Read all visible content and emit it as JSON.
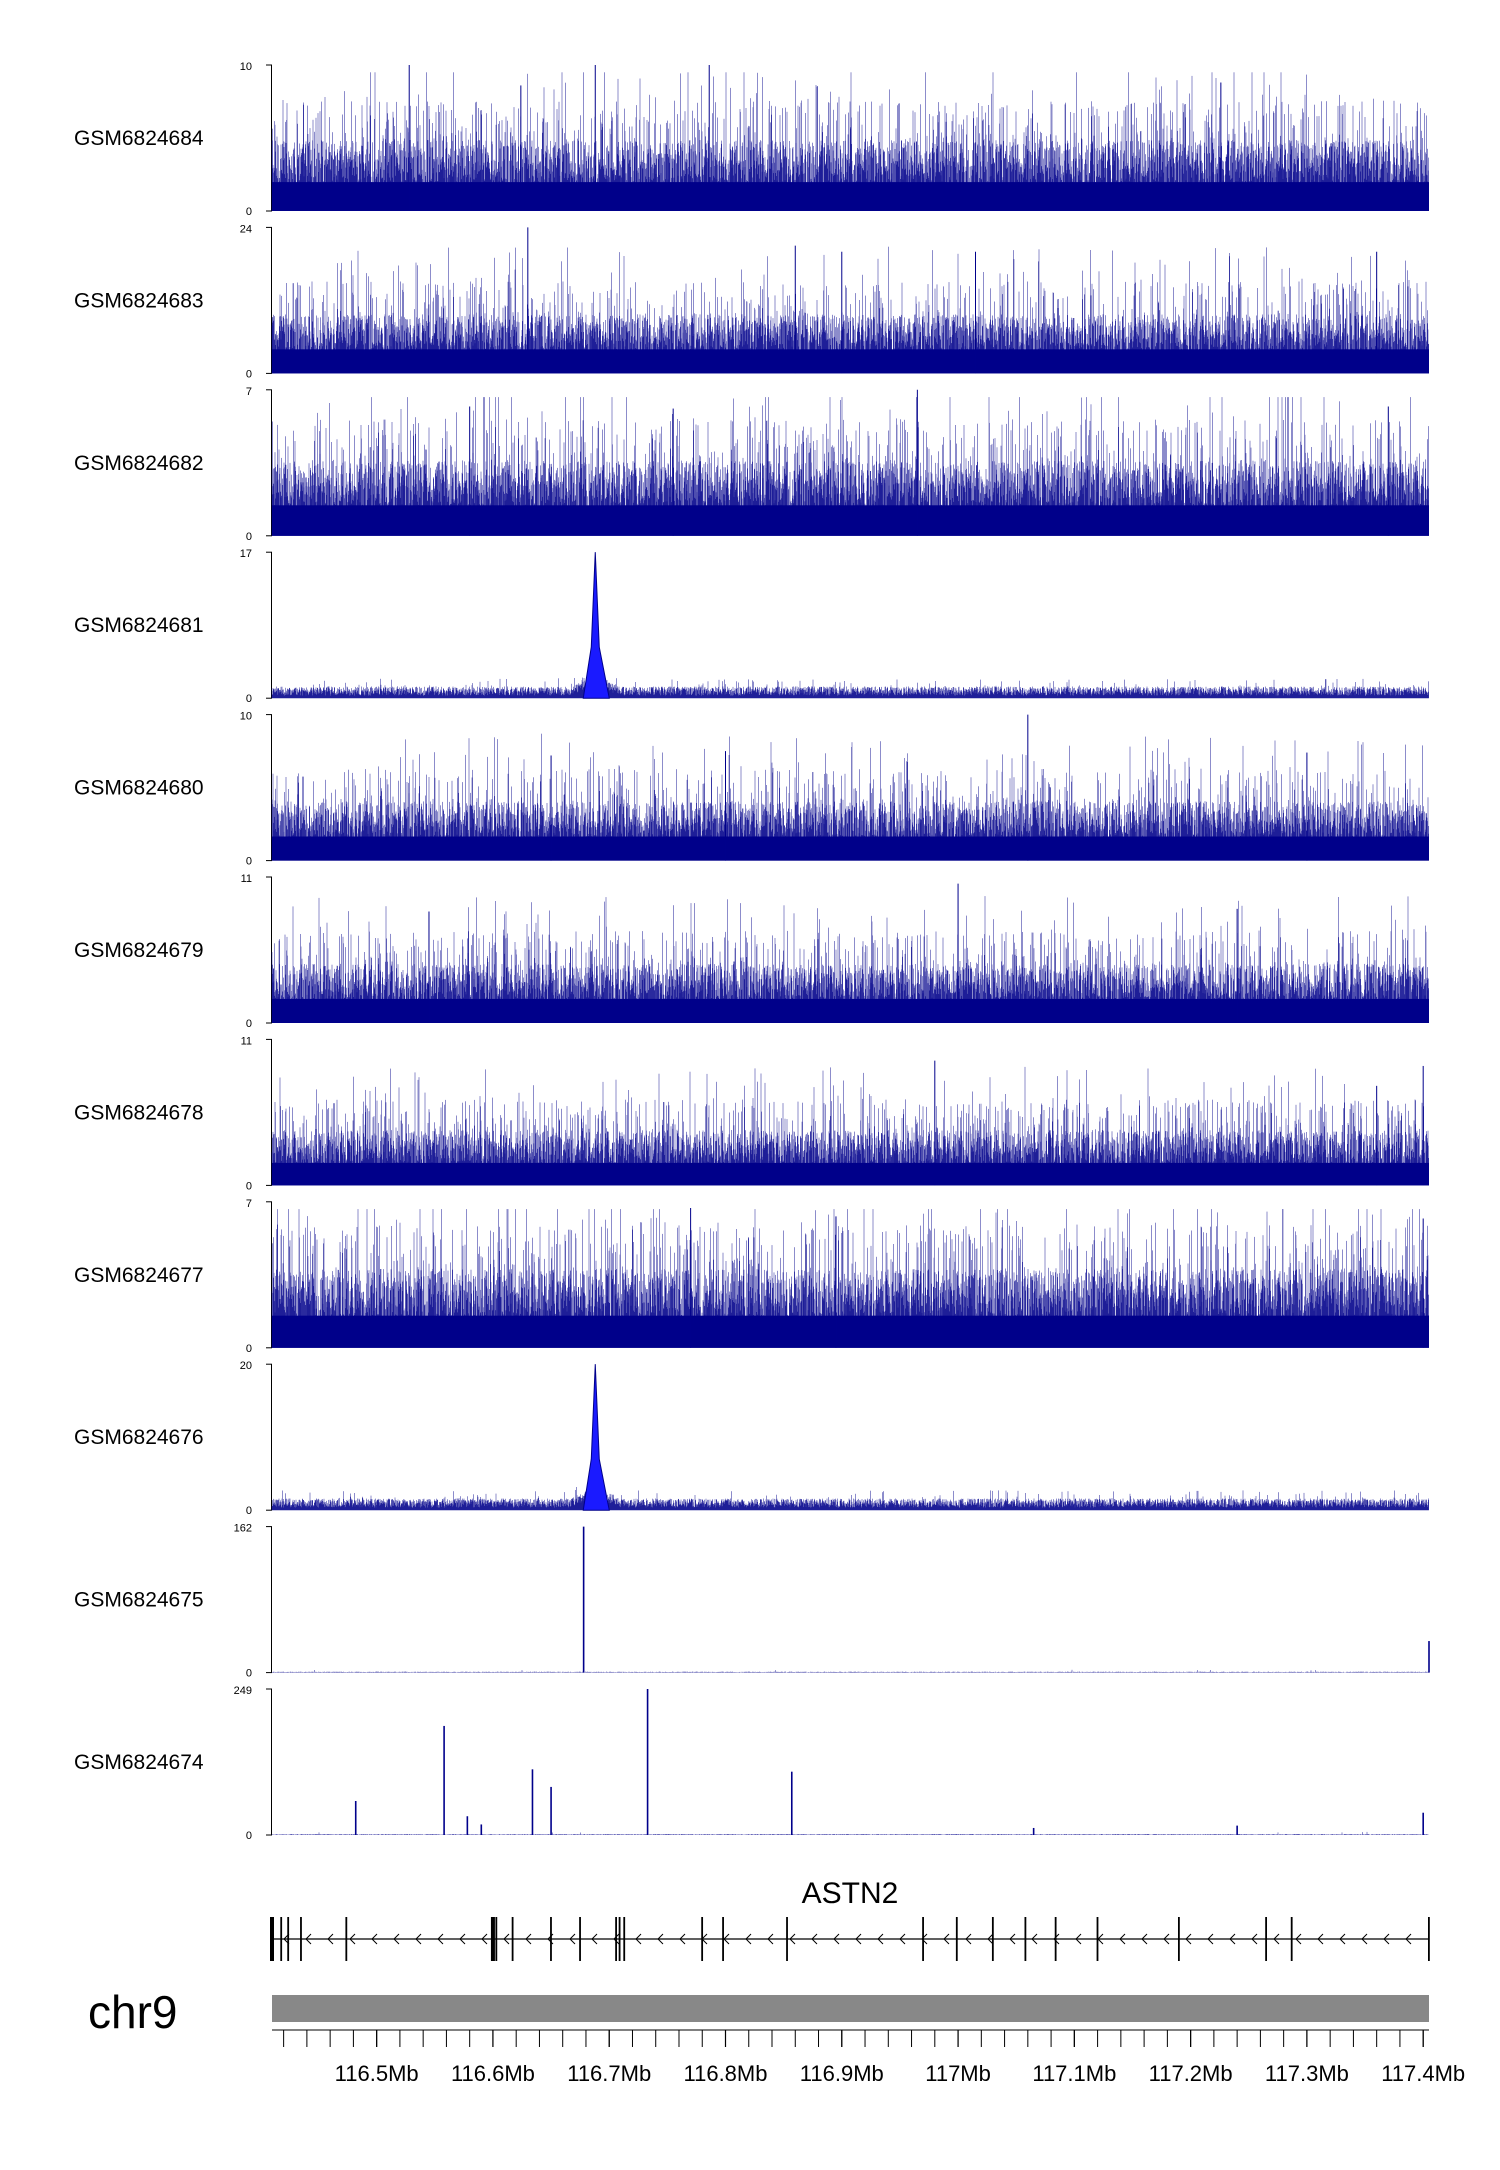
{
  "chart_data": {
    "type": "genome-track",
    "x_unit": "Mb",
    "x_range": [
      116.41,
      117.405
    ],
    "tracks": [
      {
        "name": "GSM6824684",
        "ymax": 10,
        "ymin": 0,
        "profile": "noise",
        "level": 0.36,
        "peaks": [
          {
            "pos": 116.528,
            "value": 10
          },
          {
            "pos": 116.688,
            "value": 10
          },
          {
            "pos": 116.786,
            "value": 10
          },
          {
            "pos": 116.624,
            "value": 8.6
          },
          {
            "pos": 117.226,
            "value": 8.8
          }
        ]
      },
      {
        "name": "GSM6824683",
        "ymax": 24,
        "ymin": 0,
        "profile": "noise",
        "level": 0.3,
        "peaks": [
          {
            "pos": 116.63,
            "value": 24
          },
          {
            "pos": 116.9,
            "value": 20
          },
          {
            "pos": 116.86,
            "value": 21
          },
          {
            "pos": 117.015,
            "value": 20
          },
          {
            "pos": 117.36,
            "value": 20
          }
        ]
      },
      {
        "name": "GSM6824682",
        "ymax": 7,
        "ymin": 0,
        "profile": "noise",
        "level": 0.38,
        "peaks": [
          {
            "pos": 116.965,
            "value": 7
          },
          {
            "pos": 116.58,
            "value": 6.2
          },
          {
            "pos": 116.755,
            "value": 6.1
          },
          {
            "pos": 117.37,
            "value": 6.2
          }
        ]
      },
      {
        "name": "GSM6824681",
        "ymax": 17,
        "ymin": 0,
        "profile": "peak",
        "level": 0.07,
        "peaks": [
          {
            "pos": 116.688,
            "value": 17
          }
        ]
      },
      {
        "name": "GSM6824680",
        "ymax": 10,
        "ymin": 0,
        "profile": "noise",
        "level": 0.3,
        "peaks": [
          {
            "pos": 117.06,
            "value": 10
          },
          {
            "pos": 116.65,
            "value": 7.2
          },
          {
            "pos": 116.8,
            "value": 7.5
          },
          {
            "pos": 117.3,
            "value": 7.4
          }
        ]
      },
      {
        "name": "GSM6824679",
        "ymax": 11,
        "ymin": 0,
        "profile": "noise",
        "level": 0.3,
        "peaks": [
          {
            "pos": 117.0,
            "value": 10.5
          },
          {
            "pos": 116.545,
            "value": 8.4
          },
          {
            "pos": 117.24,
            "value": 8.6
          }
        ]
      },
      {
        "name": "GSM6824678",
        "ymax": 11,
        "ymin": 0,
        "profile": "noise",
        "level": 0.28,
        "peaks": [
          {
            "pos": 116.98,
            "value": 9.4
          },
          {
            "pos": 117.4,
            "value": 9
          },
          {
            "pos": 117.36,
            "value": 7.5
          }
        ]
      },
      {
        "name": "GSM6824677",
        "ymax": 7,
        "ymin": 0,
        "profile": "noise",
        "level": 0.4,
        "peaks": [
          {
            "pos": 116.77,
            "value": 6.7
          },
          {
            "pos": 116.895,
            "value": 6.3
          },
          {
            "pos": 117.4,
            "value": 6.2
          }
        ]
      },
      {
        "name": "GSM6824676",
        "ymax": 20,
        "ymin": 0,
        "profile": "peak",
        "level": 0.07,
        "peaks": [
          {
            "pos": 116.688,
            "value": 20
          }
        ]
      },
      {
        "name": "GSM6824675",
        "ymax": 162,
        "ymin": 0,
        "profile": "sparse",
        "level": 0.004,
        "peaks": [
          {
            "pos": 116.678,
            "value": 162
          },
          {
            "pos": 117.405,
            "value": 35
          }
        ]
      },
      {
        "name": "GSM6824674",
        "ymax": 249,
        "ymin": 0,
        "profile": "sparse",
        "level": 0.004,
        "peaks": [
          {
            "pos": 116.482,
            "value": 58
          },
          {
            "pos": 116.558,
            "value": 186
          },
          {
            "pos": 116.578,
            "value": 32
          },
          {
            "pos": 116.59,
            "value": 18
          },
          {
            "pos": 116.634,
            "value": 112
          },
          {
            "pos": 116.65,
            "value": 82
          },
          {
            "pos": 116.733,
            "value": 249
          },
          {
            "pos": 116.857,
            "value": 108
          },
          {
            "pos": 117.065,
            "value": 12
          },
          {
            "pos": 117.24,
            "value": 16
          },
          {
            "pos": 117.4,
            "value": 38
          }
        ]
      }
    ],
    "gene": {
      "name": "ASTN2",
      "start": 116.41,
      "end": 117.405,
      "strand": "-",
      "exons": [
        116.41,
        116.418,
        116.424,
        116.435,
        116.474,
        116.6,
        116.603,
        116.617,
        116.65,
        116.675,
        116.706,
        116.709,
        116.713,
        116.78,
        116.798,
        116.853,
        116.97,
        116.999,
        117.03,
        117.058,
        117.084,
        117.12,
        117.19,
        117.265,
        117.287,
        117.405
      ]
    },
    "ideogram": {
      "chromosome": "chr9"
    },
    "axis": {
      "ticks": [
        "116.5Mb",
        "116.6Mb",
        "116.7Mb",
        "116.8Mb",
        "116.9Mb",
        "117Mb",
        "117.1Mb",
        "117.2Mb",
        "117.3Mb",
        "117.4Mb"
      ],
      "tick_values": [
        116.5,
        116.6,
        116.7,
        116.8,
        116.9,
        117.0,
        117.1,
        117.2,
        117.3,
        117.4
      ]
    },
    "colors": {
      "signal": "#00008b",
      "signal_light": "#1a1aff",
      "gene": "#000000",
      "ideogram": "#888888"
    }
  }
}
